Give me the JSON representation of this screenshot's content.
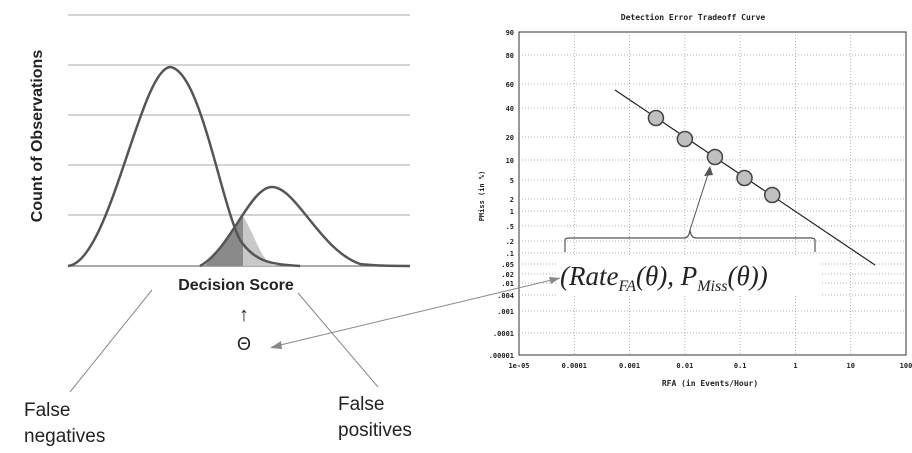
{
  "left_panel": {
    "y_axis_label": "Count of Observations",
    "x_axis_label": "Decision Score",
    "threshold_symbol": "Θ",
    "threshold_arrow": "↑",
    "false_negatives_line1": "False",
    "false_negatives_line2": "negatives",
    "false_positives_line1": "False",
    "false_positives_line2": "positives"
  },
  "right_panel": {
    "title": "Detection Error Tradeoff Curve",
    "x_axis_label": "RFA (in Events/Hour)",
    "y_axis_label": "PMiss (in %)",
    "x_ticks": [
      "1e-05",
      "0.0001",
      "0.001",
      "0.01",
      "0.1",
      "1",
      "10",
      "100"
    ],
    "y_ticks": [
      "90",
      "80",
      "60",
      "40",
      "20",
      "10",
      "5",
      "2",
      "1",
      ".5",
      ".2",
      ".1",
      ".05",
      ".02",
      ".01",
      ".004",
      ".001",
      ".0001",
      ".00001"
    ],
    "formula": "(Rate_FA(θ), P_Miss(θ))",
    "formula_parts": {
      "open": "(Rate",
      "sub1": "FA",
      "mid": "(θ), P",
      "sub2": "Miss",
      "close": "(θ))"
    }
  },
  "colors": {
    "curve": "#555555",
    "shade_dark": "#8a8a8a",
    "shade_light": "#c8c8c8",
    "gridline": "#aaaaaa",
    "marker_fill": "#c0c0c0"
  },
  "chart_data": {
    "type": "line",
    "title": "Detection Error Tradeoff Curve",
    "xlabel": "RFA (in Events/Hour)",
    "ylabel": "PMiss (in %)",
    "x_scale": "log",
    "xlim": [
      1e-05,
      100
    ],
    "series": [
      {
        "x": [
          0.003,
          0.01,
          0.035,
          0.12,
          0.38
        ],
        "y": [
          30,
          18,
          11,
          6,
          3
        ]
      }
    ],
    "grid": true
  }
}
